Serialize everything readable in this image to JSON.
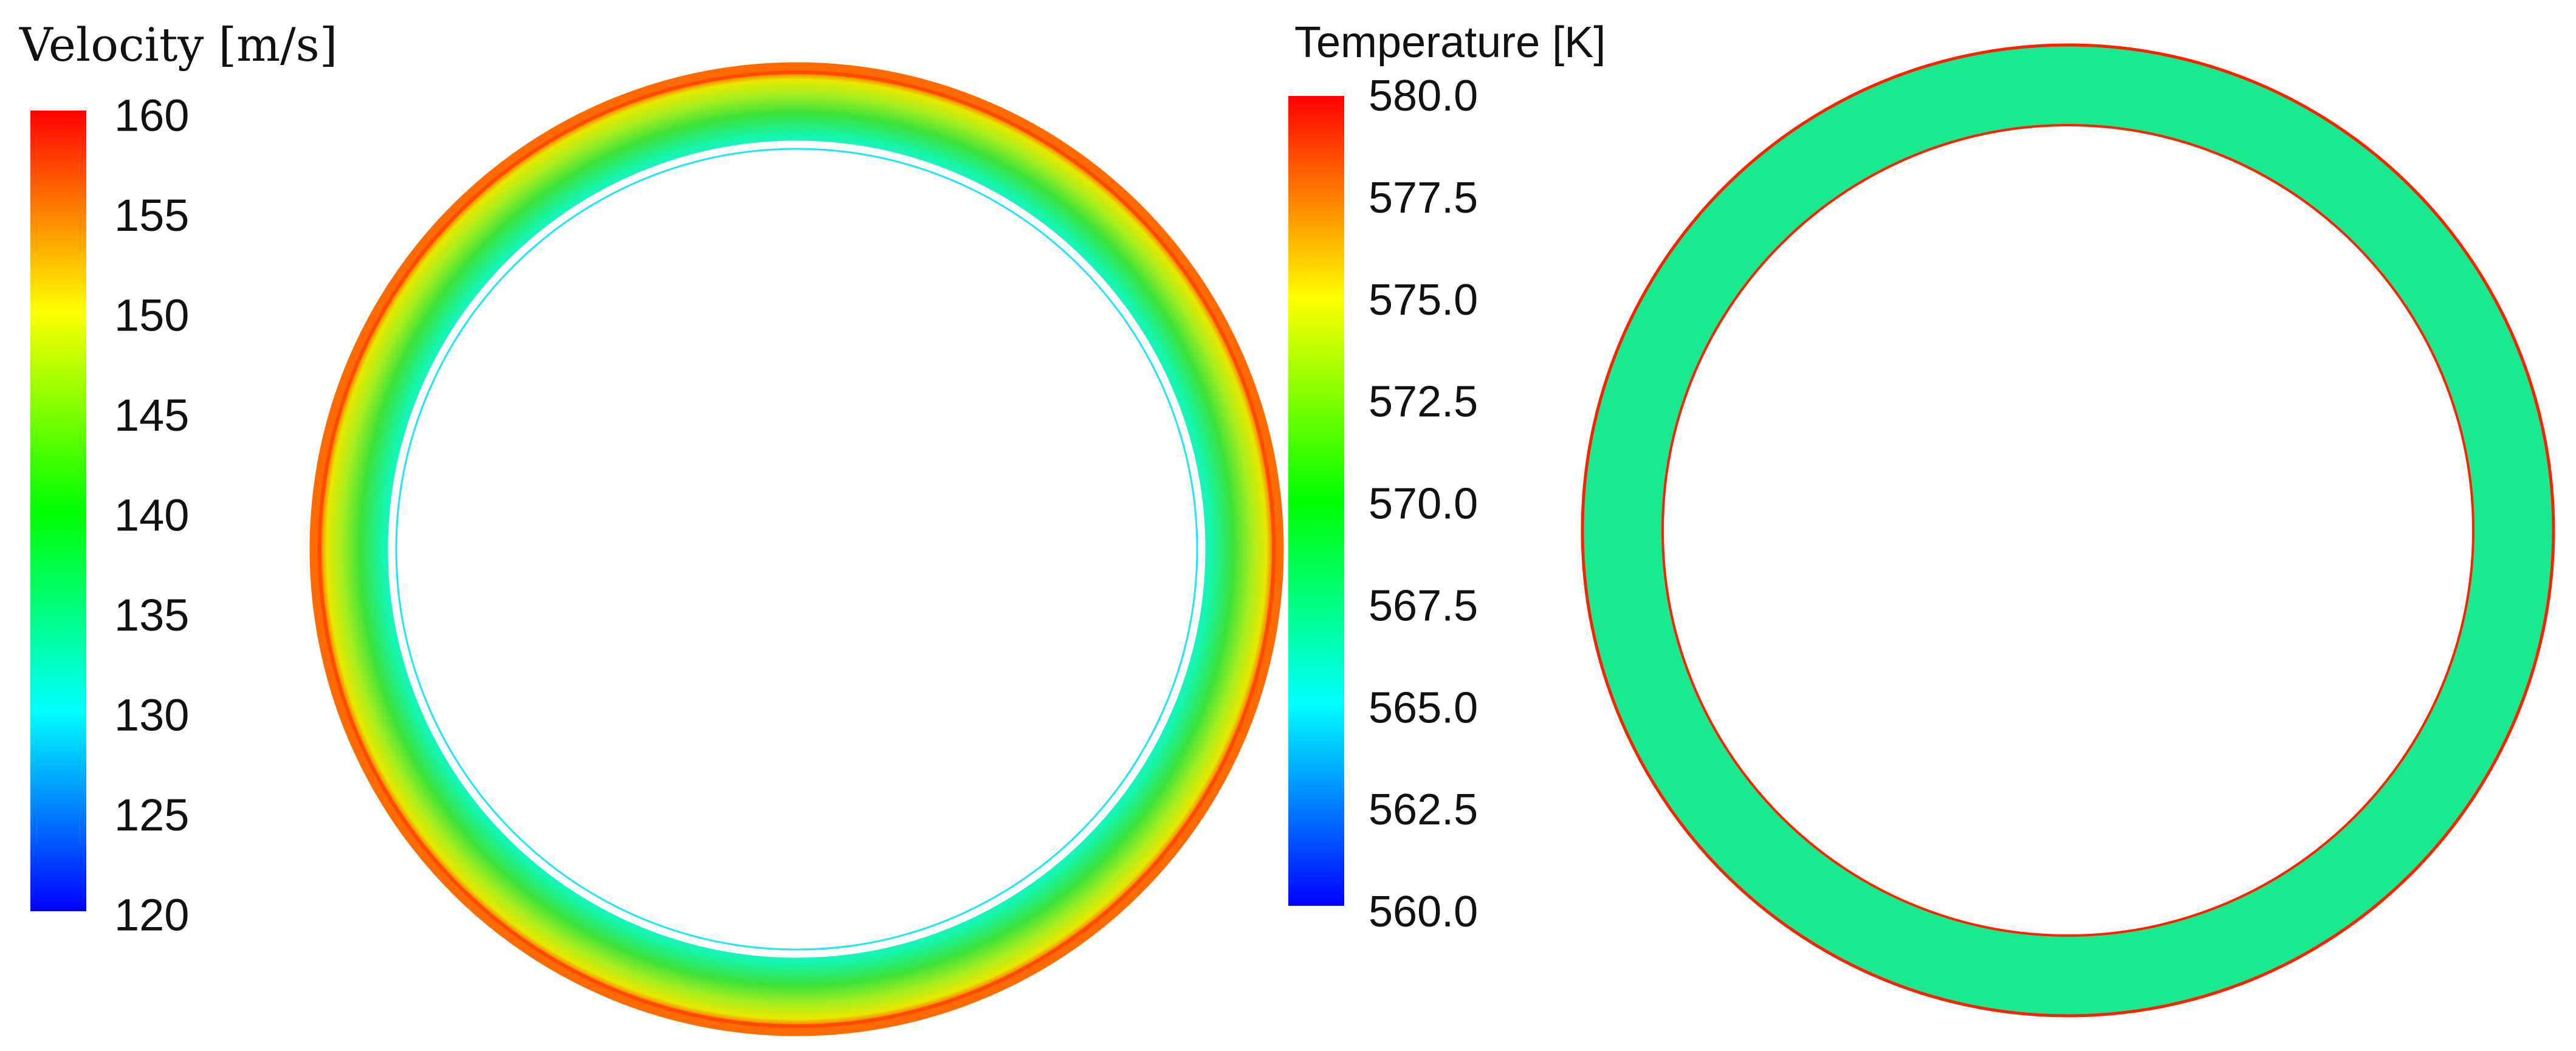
{
  "velocity_legend": {
    "title": "Velocity [m/s]",
    "ticks": [
      "160",
      "155",
      "150",
      "145",
      "140",
      "135",
      "130",
      "125",
      "120"
    ],
    "range": [
      120,
      160
    ]
  },
  "temperature_legend": {
    "title": "Temperature [K]",
    "ticks": [
      "580.0",
      "577.5",
      "575.0",
      "572.5",
      "570.0",
      "567.5",
      "565.0",
      "562.5",
      "560.0"
    ],
    "range": [
      560,
      580
    ]
  },
  "velocity_contour": {
    "quantity": "velocity",
    "inner_core_value": 131,
    "mid_band_value": 140,
    "outer_band_value": 150,
    "wall_value": 160
  },
  "temperature_contour": {
    "quantity": "temperature",
    "bulk_value": 569,
    "wall_value": 580
  },
  "colormap": {
    "stops": [
      "#0000ff",
      "#00ffff",
      "#00ff00",
      "#ffff00",
      "#ff0000"
    ]
  }
}
